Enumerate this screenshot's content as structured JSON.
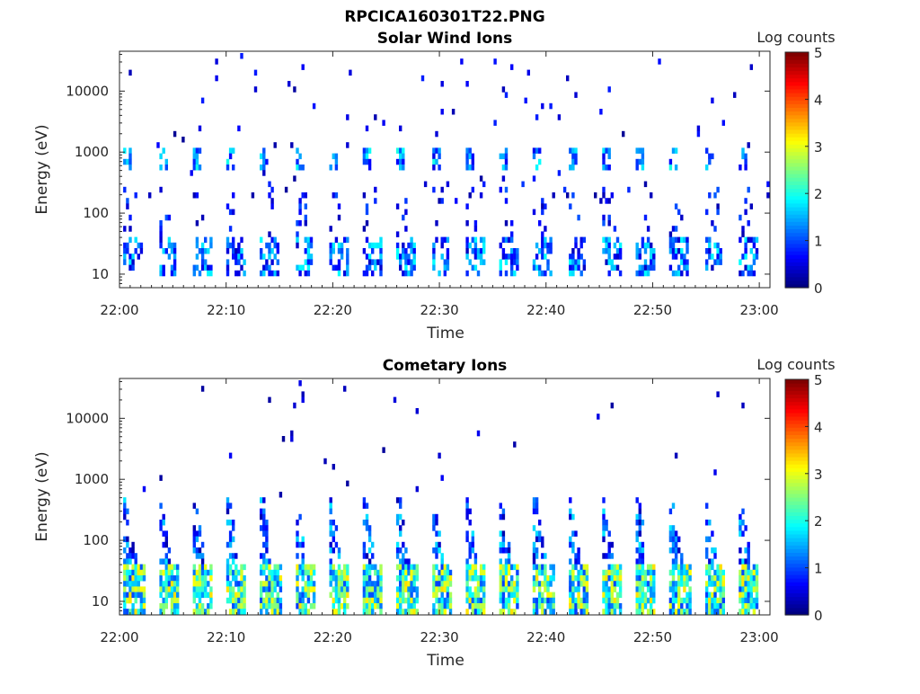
{
  "figure": {
    "title": "RPCICA160301T22.PNG"
  },
  "chart_data": [
    {
      "type": "heatmap",
      "title": "Solar Wind Ions",
      "xlabel": "Time",
      "ylabel": "Energy (eV)",
      "x_ticks": [
        "22:00",
        "22:10",
        "22:20",
        "22:30",
        "22:40",
        "22:50",
        "23:00"
      ],
      "x_range": [
        "22:00",
        "23:01"
      ],
      "y_scale": "log",
      "y_ticks": [
        10,
        100,
        1000,
        10000
      ],
      "y_tick_labels": [
        "10",
        "100",
        "1000",
        "10000"
      ],
      "ylim": [
        6,
        45000
      ],
      "colorbar": {
        "label": "Log counts",
        "range": [
          0,
          5
        ],
        "ticks": [
          "0",
          "1",
          "2",
          "3",
          "4",
          "5"
        ],
        "colormap": "jet"
      },
      "sweep_period_min": 3.2,
      "bands": [
        {
          "energy_range_eV": [
            10,
            45
          ],
          "log_counts": 1.5,
          "description": "low-energy sweep band"
        },
        {
          "energy_range_eV": [
            600,
            1200
          ],
          "log_counts": 1.6,
          "description": "solar wind proton peak near 1000 eV"
        }
      ]
    },
    {
      "type": "heatmap",
      "title": "Cometary Ions",
      "xlabel": "Time",
      "ylabel": "Energy (eV)",
      "x_ticks": [
        "22:00",
        "22:10",
        "22:20",
        "22:30",
        "22:40",
        "22:50",
        "23:00"
      ],
      "x_range": [
        "22:00",
        "23:01"
      ],
      "y_scale": "log",
      "y_ticks": [
        10,
        100,
        1000,
        10000
      ],
      "y_tick_labels": [
        "10",
        "100",
        "1000",
        "10000"
      ],
      "ylim": [
        6,
        45000
      ],
      "colorbar": {
        "label": "Log counts",
        "range": [
          0,
          5
        ],
        "ticks": [
          "0",
          "1",
          "2",
          "3",
          "4",
          "5"
        ],
        "colormap": "jet"
      },
      "sweep_period_min": 3.2,
      "bands": [
        {
          "energy_range_eV": [
            6,
            45
          ],
          "log_counts": 2.8,
          "description": "intense low-energy cometary ions"
        },
        {
          "energy_range_eV": [
            45,
            500
          ],
          "log_counts": 1.3,
          "description": "energy dispersion stripes"
        }
      ]
    }
  ]
}
